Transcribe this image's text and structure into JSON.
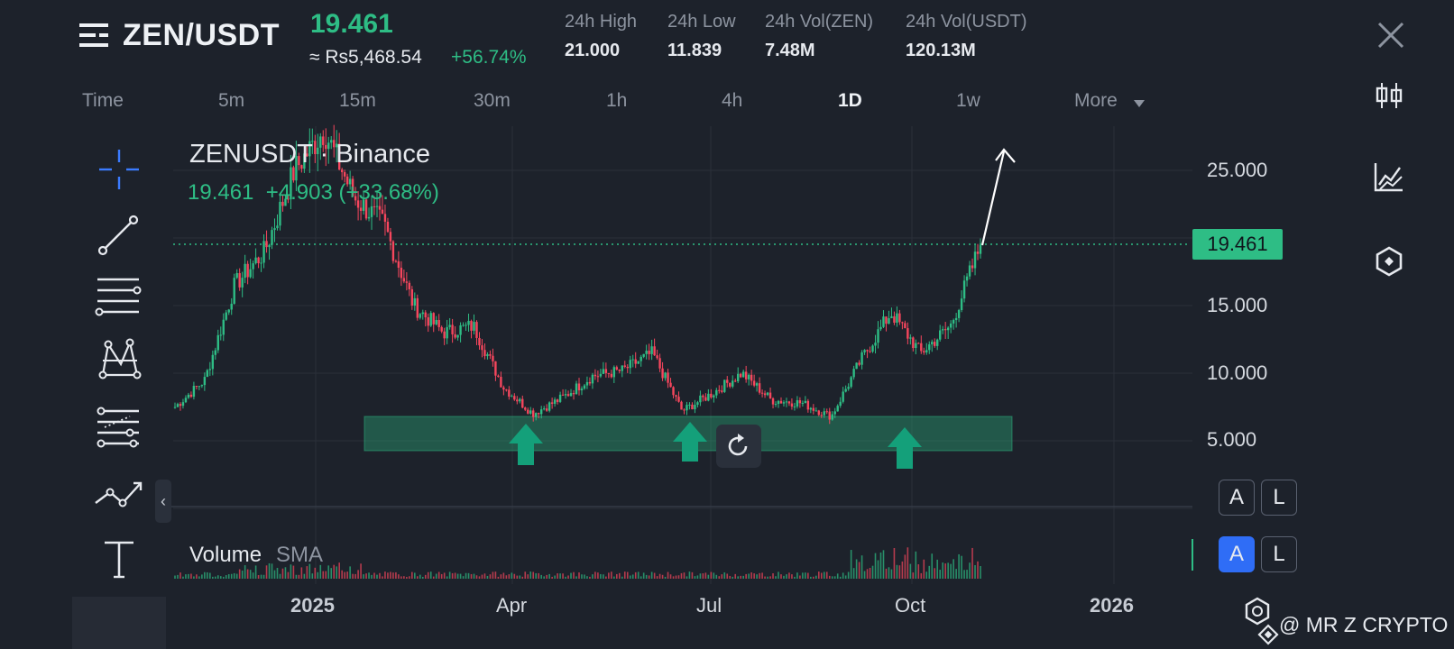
{
  "header": {
    "pair": "ZEN/USDT",
    "price": "19.461",
    "price_fiat": "≈ Rs5,468.54",
    "change_pct": "+56.74%",
    "stats": [
      {
        "label": "24h High",
        "value": "21.000"
      },
      {
        "label": "24h Low",
        "value": "11.839"
      },
      {
        "label": "24h Vol(ZEN)",
        "value": "7.48M"
      },
      {
        "label": "24h Vol(USDT)",
        "value": "120.13M"
      }
    ]
  },
  "timeframes": {
    "items": [
      "Time",
      "5m",
      "15m",
      "30m",
      "1h",
      "4h",
      "1D",
      "1w"
    ],
    "active": "1D",
    "more": "More"
  },
  "right_tools": [
    "candlestick-icon",
    "indicator-chart-icon",
    "hexagon-settings-icon"
  ],
  "left_tools": [
    "crosshair-icon",
    "trend-line-icon",
    "horizontal-lines-icon",
    "pattern-icon",
    "fib-levels-icon",
    "polyline-icon",
    "text-tool-icon"
  ],
  "chart": {
    "title": "ZENUSDT · Binance",
    "ohlc_line": "19.461  +4.903 (+33.68%)",
    "last_price_tag": "19.461",
    "volume_label": "Volume",
    "sma_label": "SMA",
    "scale_buttons_main": [
      "A",
      "L"
    ],
    "scale_buttons_volume": [
      "A",
      "L"
    ]
  },
  "chart_data": {
    "type": "candlestick",
    "title": "ZENUSDT · Binance",
    "y_ticks": [
      "25.000",
      "15.000",
      "10.000",
      "5.000"
    ],
    "x_ticks": [
      "2025",
      "Apr",
      "Jul",
      "Oct",
      "2026"
    ],
    "ylim": [
      1.5,
      28.5
    ],
    "last_price": 19.461,
    "change": 4.903,
    "change_pct": 33.68,
    "support_zone": {
      "low": 4.2,
      "high": 6.8
    },
    "annotations": [
      "3 up arrows marking support bounces (early Apr, late Jun, late Sep)",
      "upward arrow projecting breakout above 25"
    ],
    "approx_closes_by_week": [
      {
        "period": "2024-11 early",
        "close": 7.5
      },
      {
        "period": "2024-11 late",
        "close": 9.5
      },
      {
        "period": "2024-12 early",
        "close": 16.5
      },
      {
        "period": "2024-12 mid",
        "close": 19.0
      },
      {
        "period": "2024-12 late",
        "close": 25.0
      },
      {
        "period": "2025-01 early",
        "close": 28.0
      },
      {
        "period": "2025-01 mid",
        "close": 23.0
      },
      {
        "period": "2025-01 late",
        "close": 21.0
      },
      {
        "period": "2025-02 early",
        "close": 15.0
      },
      {
        "period": "2025-02 late",
        "close": 13.0
      },
      {
        "period": "2025-03 early",
        "close": 13.5
      },
      {
        "period": "2025-03 late",
        "close": 9.0
      },
      {
        "period": "2025-04 early",
        "close": 7.0
      },
      {
        "period": "2025-04 late",
        "close": 8.2
      },
      {
        "period": "2025-05 early",
        "close": 9.8
      },
      {
        "period": "2025-05 late",
        "close": 10.2
      },
      {
        "period": "2025-06 early",
        "close": 11.5
      },
      {
        "period": "2025-06 late",
        "close": 7.2
      },
      {
        "period": "2025-07 mid",
        "close": 8.5
      },
      {
        "period": "2025-08 early",
        "close": 10.0
      },
      {
        "period": "2025-08 late",
        "close": 8.0
      },
      {
        "period": "2025-09 mid",
        "close": 7.8
      },
      {
        "period": "2025-09 late",
        "close": 6.8
      },
      {
        "period": "2025-10 early",
        "close": 11.0
      },
      {
        "period": "2025-10 mid",
        "close": 14.5
      },
      {
        "period": "2025-10 late",
        "close": 11.5
      },
      {
        "period": "2025-11 early",
        "close": 13.5
      },
      {
        "period": "2025-11 current",
        "close": 19.461
      }
    ]
  },
  "watermark": "@ MR Z CRYPTO"
}
